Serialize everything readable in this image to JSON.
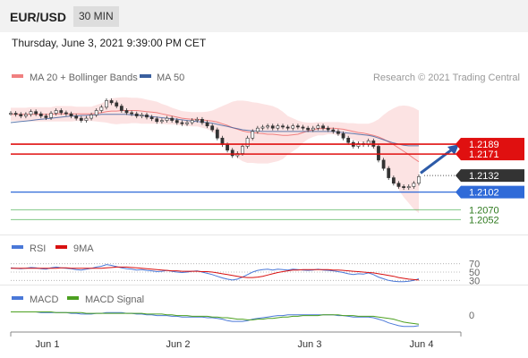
{
  "header": {
    "symbol": "EUR/USD",
    "timeframe": "30 MIN"
  },
  "datetime": "Thursday, June 3, 2021 9:39:00 PM CET",
  "credit": "Research © 2021 Trading Central",
  "colors": {
    "bollinger": "#f08080",
    "ma50": "#3a5f9e",
    "resistance": "#e01010",
    "current": "#333333",
    "pivot": "#2f6ad8",
    "support": "#4caf50",
    "arrow": "#2d5ba8",
    "rsi": "#4a78d8",
    "rsi_ma": "#d81010",
    "macd": "#4a78d8",
    "macd_signal": "#4ca020"
  },
  "chart_data": [
    {
      "type": "line",
      "panel": "price",
      "legend": [
        "MA 20 + Bollinger Bands",
        "MA 50"
      ],
      "x_ticks": [
        "Jun 1",
        "Jun 2",
        "Jun 3",
        "Jun 4"
      ],
      "levels": [
        {
          "value": 1.2189,
          "label": "1.2189",
          "role": "resistance"
        },
        {
          "value": 1.2171,
          "label": "1.2171",
          "role": "resistance"
        },
        {
          "value": 1.2132,
          "label": "1.2132",
          "role": "current"
        },
        {
          "value": 1.2102,
          "label": "1.2102",
          "role": "pivot"
        },
        {
          "value": 1.207,
          "label": "1.2070",
          "role": "support"
        },
        {
          "value": 1.2052,
          "label": "1.2052",
          "role": "support"
        }
      ],
      "close": [
        1.2245,
        1.2243,
        1.224,
        1.2243,
        1.2248,
        1.2244,
        1.224,
        1.2237,
        1.2245,
        1.225,
        1.2246,
        1.2244,
        1.224,
        1.2236,
        1.2232,
        1.2236,
        1.2242,
        1.225,
        1.2256,
        1.2268,
        1.2264,
        1.2258,
        1.225,
        1.2246,
        1.2244,
        1.224,
        1.2242,
        1.2238,
        1.2235,
        1.223,
        1.2232,
        1.2236,
        1.2232,
        1.2228,
        1.2226,
        1.2228,
        1.2232,
        1.2234,
        1.2228,
        1.2222,
        1.2215,
        1.22,
        1.2188,
        1.2178,
        1.2168,
        1.2172,
        1.2185,
        1.22,
        1.2212,
        1.2218,
        1.222,
        1.2222,
        1.2218,
        1.2222,
        1.222,
        1.2218,
        1.2222,
        1.222,
        1.2218,
        1.2215,
        1.2218,
        1.2222,
        1.2218,
        1.2215,
        1.2212,
        1.2208,
        1.22,
        1.2192,
        1.2185,
        1.219,
        1.2188,
        1.2195,
        1.2185,
        1.216,
        1.2145,
        1.2128,
        1.2118,
        1.2112,
        1.211,
        1.2112,
        1.2118,
        1.213
      ],
      "bollinger_middle": [
        1.2243,
        1.2243,
        1.2243,
        1.2243,
        1.2243,
        1.2243,
        1.2243,
        1.2243,
        1.2243,
        1.2244,
        1.2244,
        1.2244,
        1.2244,
        1.2244,
        1.2244,
        1.2244,
        1.2244,
        1.2245,
        1.2246,
        1.2248,
        1.2249,
        1.2249,
        1.225,
        1.225,
        1.225,
        1.225,
        1.2249,
        1.2248,
        1.2247,
        1.2246,
        1.2244,
        1.2242,
        1.224,
        1.2238,
        1.2236,
        1.2235,
        1.2234,
        1.2234,
        1.2233,
        1.2232,
        1.2231,
        1.2229,
        1.2226,
        1.2223,
        1.2219,
        1.2216,
        1.2213,
        1.2211,
        1.221,
        1.2209,
        1.2208,
        1.2207,
        1.2207,
        1.2206,
        1.2205,
        1.2205,
        1.2206,
        1.2207,
        1.221,
        1.2213,
        1.2215,
        1.2217,
        1.2217,
        1.2218,
        1.2218,
        1.2217,
        1.2216,
        1.2214,
        1.2212,
        1.221,
        1.2209,
        1.2207,
        1.2205,
        1.2202,
        1.2198,
        1.2193,
        1.2188,
        1.2182,
        1.2176,
        1.217,
        1.2163,
        1.2157
      ],
      "bollinger_upper": [
        1.2255,
        1.2255,
        1.2255,
        1.2255,
        1.2256,
        1.2256,
        1.2256,
        1.2256,
        1.2256,
        1.2258,
        1.2258,
        1.2258,
        1.2258,
        1.2257,
        1.2257,
        1.2257,
        1.2257,
        1.226,
        1.2263,
        1.2268,
        1.2272,
        1.2273,
        1.2274,
        1.2274,
        1.2273,
        1.2273,
        1.2272,
        1.227,
        1.2268,
        1.2266,
        1.2262,
        1.2259,
        1.2255,
        1.2252,
        1.2249,
        1.2248,
        1.2247,
        1.2247,
        1.2247,
        1.2248,
        1.225,
        1.2254,
        1.2258,
        1.2262,
        1.2266,
        1.2268,
        1.2268,
        1.2267,
        1.2265,
        1.2264,
        1.2262,
        1.226,
        1.2258,
        1.2254,
        1.2248,
        1.224,
        1.2236,
        1.2232,
        1.2229,
        1.2228,
        1.2228,
        1.2229,
        1.2229,
        1.2229,
        1.2229,
        1.2229,
        1.2228,
        1.2227,
        1.2227,
        1.2226,
        1.2226,
        1.2226,
        1.2229,
        1.2234,
        1.2242,
        1.2249,
        1.2254,
        1.2258,
        1.2259,
        1.2258,
        1.2255,
        1.225
      ],
      "bollinger_lower": [
        1.2231,
        1.2231,
        1.2231,
        1.2231,
        1.223,
        1.223,
        1.223,
        1.223,
        1.223,
        1.223,
        1.223,
        1.223,
        1.223,
        1.2231,
        1.2231,
        1.2231,
        1.2231,
        1.223,
        1.2229,
        1.2228,
        1.2226,
        1.2225,
        1.2226,
        1.2226,
        1.2227,
        1.2227,
        1.2226,
        1.2226,
        1.2226,
        1.2226,
        1.2226,
        1.2225,
        1.2225,
        1.2224,
        1.2223,
        1.2222,
        1.2221,
        1.2221,
        1.2219,
        1.2216,
        1.2212,
        1.2204,
        1.2194,
        1.2184,
        1.2172,
        1.2164,
        1.2158,
        1.2155,
        1.2155,
        1.2154,
        1.2154,
        1.2154,
        1.2156,
        1.2158,
        1.2162,
        1.217,
        1.2176,
        1.2182,
        1.2191,
        1.2198,
        1.2202,
        1.2205,
        1.2205,
        1.2207,
        1.2207,
        1.2205,
        1.2204,
        1.2201,
        1.2197,
        1.2194,
        1.2192,
        1.2188,
        1.2181,
        1.217,
        1.2154,
        1.2137,
        1.2122,
        1.2106,
        1.2093,
        1.2082,
        1.2071,
        1.2064
      ],
      "ma50": [
        1.2228,
        1.2229,
        1.223,
        1.2231,
        1.2232,
        1.2233,
        1.2234,
        1.2235,
        1.2236,
        1.2237,
        1.2238,
        1.2239,
        1.224,
        1.224,
        1.2241,
        1.2241,
        1.2242,
        1.2242,
        1.2243,
        1.2243,
        1.2243,
        1.2243,
        1.2243,
        1.2243,
        1.2242,
        1.2242,
        1.2241,
        1.224,
        1.2239,
        1.2238,
        1.2237,
        1.2236,
        1.2235,
        1.2234,
        1.2233,
        1.2232,
        1.2231,
        1.223,
        1.2229,
        1.2228,
        1.2227,
        1.2225,
        1.2223,
        1.2221,
        1.2219,
        1.2217,
        1.2215,
        1.2214,
        1.2213,
        1.2213,
        1.2212,
        1.2212,
        1.2212,
        1.2212,
        1.2212,
        1.2212,
        1.2212,
        1.2212,
        1.2212,
        1.2212,
        1.2212,
        1.2212,
        1.2212,
        1.2212,
        1.2212,
        1.2211,
        1.221,
        1.2209,
        1.2208,
        1.2207,
        1.2206,
        1.2205,
        1.2203,
        1.22,
        1.2197,
        1.2194,
        1.2191,
        1.2189,
        1.2187,
        1.2186,
        1.2186,
        1.2186
      ],
      "forecast_arrow": {
        "from": 1.213,
        "to": 1.2189
      }
    },
    {
      "type": "line",
      "panel": "rsi",
      "legend": [
        "RSI",
        "9MA"
      ],
      "y_ticks": [
        "70",
        "50",
        "30"
      ],
      "levels": [
        70,
        50,
        30
      ],
      "ylim": [
        20,
        80
      ],
      "rsi": [
        60,
        59,
        58,
        59,
        61,
        60,
        58,
        57,
        60,
        62,
        60,
        59,
        58,
        56,
        55,
        57,
        59,
        62,
        64,
        68,
        66,
        63,
        60,
        58,
        57,
        55,
        56,
        54,
        53,
        51,
        52,
        54,
        52,
        50,
        49,
        50,
        52,
        53,
        50,
        47,
        44,
        40,
        36,
        33,
        31,
        33,
        38,
        44,
        50,
        54,
        56,
        57,
        55,
        57,
        56,
        55,
        57,
        56,
        55,
        54,
        55,
        57,
        55,
        54,
        53,
        51,
        49,
        46,
        44,
        46,
        45,
        48,
        44,
        38,
        34,
        30,
        28,
        27,
        27,
        28,
        30,
        34
      ],
      "rsi_ma": [
        59,
        59,
        59,
        59,
        59,
        59,
        59,
        59,
        59,
        59,
        60,
        60,
        59,
        59,
        59,
        59,
        59,
        59,
        59,
        60,
        61,
        62,
        62,
        62,
        61,
        60,
        59,
        58,
        57,
        56,
        55,
        54,
        53,
        53,
        52,
        52,
        52,
        52,
        51,
        51,
        50,
        48,
        46,
        44,
        42,
        40,
        38,
        37,
        37,
        38,
        40,
        43,
        46,
        49,
        51,
        53,
        55,
        55,
        56,
        56,
        56,
        56,
        56,
        56,
        55,
        55,
        54,
        53,
        52,
        51,
        50,
        49,
        48,
        46,
        44,
        42,
        40,
        37,
        35,
        33,
        32,
        31
      ]
    },
    {
      "type": "line",
      "panel": "macd",
      "legend": [
        "MACD",
        "MACD Signal"
      ],
      "y_ticks": [
        "0"
      ],
      "ylim": [
        -0.002,
        0.0012
      ],
      "macd": [
        0.0004,
        0.0004,
        0.0004,
        0.0004,
        0.0004,
        0.0004,
        0.0003,
        0.0003,
        0.0003,
        0.0003,
        0.0003,
        0.0003,
        0.0002,
        0.0002,
        0.0001,
        0.0001,
        0.0001,
        0.0002,
        0.0002,
        0.0003,
        0.0003,
        0.0003,
        0.0003,
        0.0002,
        0.0002,
        0.0001,
        0.0001,
        0.0,
        0.0,
        -0.0001,
        -0.0001,
        -0.0001,
        -0.0002,
        -0.0002,
        -0.0003,
        -0.0003,
        -0.0003,
        -0.0003,
        -0.0003,
        -0.0004,
        -0.0004,
        -0.0005,
        -0.0006,
        -0.0008,
        -0.0009,
        -0.0009,
        -0.0009,
        -0.0008,
        -0.0006,
        -0.0005,
        -0.0004,
        -0.0003,
        -0.0002,
        -0.0001,
        -0.0001,
        0.0,
        0.0,
        0.0,
        0.0,
        0.0,
        0.0,
        0.0,
        0.0,
        0.0,
        0.0,
        -0.0001,
        -0.0001,
        -0.0002,
        -0.0003,
        -0.0003,
        -0.0003,
        -0.0003,
        -0.0004,
        -0.0006,
        -0.0008,
        -0.0011,
        -0.0013,
        -0.0015,
        -0.0016,
        -0.0016,
        -0.0016,
        -0.0015
      ],
      "macd_signal": [
        0.0004,
        0.0004,
        0.0004,
        0.0004,
        0.0004,
        0.0004,
        0.0004,
        0.0004,
        0.0004,
        0.0003,
        0.0003,
        0.0003,
        0.0003,
        0.0003,
        0.0003,
        0.0002,
        0.0002,
        0.0002,
        0.0002,
        0.0002,
        0.0002,
        0.0002,
        0.0002,
        0.0002,
        0.0002,
        0.0002,
        0.0002,
        0.0001,
        0.0001,
        0.0001,
        0.0001,
        0.0,
        0.0,
        -0.0001,
        -0.0001,
        -0.0001,
        -0.0002,
        -0.0002,
        -0.0002,
        -0.0002,
        -0.0003,
        -0.0003,
        -0.0004,
        -0.0004,
        -0.0005,
        -0.0006,
        -0.0006,
        -0.0007,
        -0.0007,
        -0.0006,
        -0.0006,
        -0.0005,
        -0.0005,
        -0.0004,
        -0.0003,
        -0.0003,
        -0.0002,
        -0.0002,
        -0.0001,
        -0.0001,
        -0.0001,
        -0.0001,
        0.0,
        0.0,
        0.0,
        0.0,
        -0.0001,
        -0.0001,
        -0.0001,
        -0.0002,
        -0.0002,
        -0.0002,
        -0.0002,
        -0.0003,
        -0.0004,
        -0.0005,
        -0.0006,
        -0.0008,
        -0.001,
        -0.0011,
        -0.0012,
        -0.0013
      ]
    }
  ]
}
